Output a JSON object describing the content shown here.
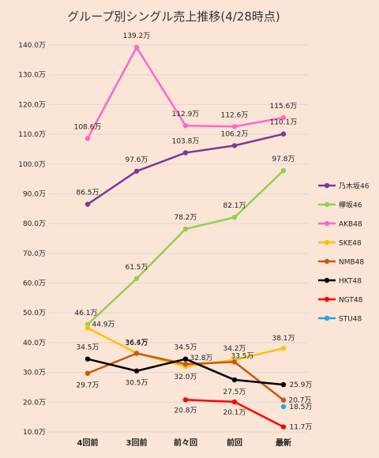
{
  "chart_data": {
    "type": "line",
    "title": "グループ別シングル売上推移(4/28時点)",
    "xlabel": "",
    "ylabel": "",
    "ylim": [
      10,
      140
    ],
    "yticks": [
      "10.0万",
      "20.0万",
      "30.0万",
      "40.0万",
      "50.0万",
      "60.0万",
      "70.0万",
      "80.0万",
      "90.0万",
      "100.0万",
      "110.0万",
      "120.0万",
      "130.0万",
      "140.0万"
    ],
    "categories": [
      "4回前",
      "3回前",
      "前々回",
      "前回",
      "最新"
    ],
    "grid": true,
    "legend_position": "right",
    "series": [
      {
        "name": "乃木坂46",
        "color": "#7b3a96",
        "values": [
          86.5,
          97.6,
          103.8,
          106.2,
          110.1
        ],
        "labels": [
          "86.5万",
          "97.6万",
          "103.8万",
          "106.2万",
          "110.1万"
        ]
      },
      {
        "name": "欅坂46",
        "color": "#92d050",
        "values": [
          46.1,
          61.5,
          78.2,
          82.1,
          97.8
        ],
        "labels": [
          "46.1万",
          "61.5万",
          "78.2万",
          "82.1万",
          "97.8万"
        ]
      },
      {
        "name": "AKB48",
        "color": "#ff66cc",
        "values": [
          108.6,
          139.2,
          112.9,
          112.6,
          115.6
        ],
        "labels": [
          "108.6万",
          "139.2万",
          "112.9万",
          "112.6万",
          "115.6万"
        ]
      },
      {
        "name": "SKE48",
        "color": "#ffc000",
        "values": [
          44.9,
          36.5,
          32.0,
          34.2,
          38.1
        ],
        "labels": [
          "44.9万",
          "36.5万",
          "32.0万",
          "34.2万",
          "38.1万"
        ]
      },
      {
        "name": "NMB48",
        "color": "#c55a11",
        "values": [
          29.7,
          36.4,
          32.8,
          33.5,
          20.7
        ],
        "labels": [
          "29.7万",
          "36.4万",
          "32.8万",
          "33.5万",
          "20.7万"
        ]
      },
      {
        "name": "HKT48",
        "color": "#000000",
        "values": [
          34.5,
          30.5,
          34.5,
          27.5,
          25.9
        ],
        "labels": [
          "34.5万",
          "30.5万",
          "34.5万",
          "27.5万",
          "25.9万"
        ]
      },
      {
        "name": "NGT48",
        "color": "#ff0000",
        "values": [
          null,
          null,
          20.8,
          20.1,
          11.7
        ],
        "labels": [
          null,
          null,
          "20.8万",
          "20.1万",
          "11.7万"
        ]
      },
      {
        "name": "STU48",
        "color": "#1fa8e0",
        "values": [
          null,
          null,
          null,
          null,
          18.5
        ],
        "labels": [
          null,
          null,
          null,
          null,
          "18.5万"
        ]
      }
    ]
  }
}
